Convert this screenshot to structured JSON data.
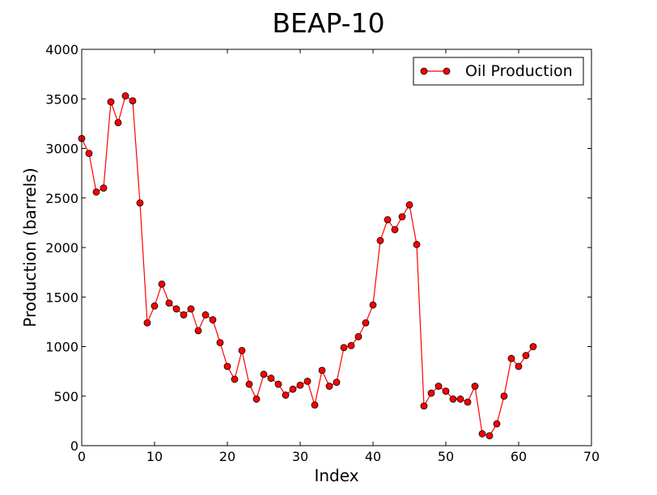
{
  "chart_data": {
    "type": "line",
    "title": "BEAP-10",
    "xlabel": "Index",
    "ylabel": "Production (barrels)",
    "xlim": [
      0,
      70
    ],
    "ylim": [
      0,
      4000
    ],
    "xticks": [
      0,
      10,
      20,
      30,
      40,
      50,
      60,
      70
    ],
    "yticks": [
      0,
      500,
      1000,
      1500,
      2000,
      2500,
      3000,
      3500,
      4000
    ],
    "grid": false,
    "legend_position": "top-right",
    "series": [
      {
        "name": "Oil Production",
        "color": "#ff0000",
        "marker": "circle",
        "x": [
          0,
          1,
          2,
          3,
          4,
          5,
          6,
          7,
          8,
          9,
          10,
          11,
          12,
          13,
          14,
          15,
          16,
          17,
          18,
          19,
          20,
          21,
          22,
          23,
          24,
          25,
          26,
          27,
          28,
          29,
          30,
          31,
          32,
          33,
          34,
          35,
          36,
          37,
          38,
          39,
          40,
          41,
          42,
          43,
          44,
          45,
          46,
          47,
          48,
          49,
          50,
          51,
          52,
          53,
          54,
          55,
          56,
          57,
          58,
          59,
          60,
          61,
          62
        ],
        "y": [
          3100,
          2950,
          2560,
          2600,
          3470,
          3260,
          3530,
          3480,
          2450,
          1240,
          1410,
          1630,
          1440,
          1380,
          1320,
          1380,
          1160,
          1320,
          1270,
          1040,
          800,
          670,
          960,
          620,
          470,
          720,
          680,
          620,
          510,
          570,
          610,
          650,
          410,
          760,
          600,
          640,
          990,
          1010,
          1100,
          1240,
          1420,
          2070,
          2280,
          2180,
          2310,
          2430,
          2030,
          400,
          530,
          600,
          550,
          470,
          470,
          440,
          600,
          120,
          100,
          220,
          500,
          880,
          800,
          910,
          1000
        ]
      }
    ]
  }
}
